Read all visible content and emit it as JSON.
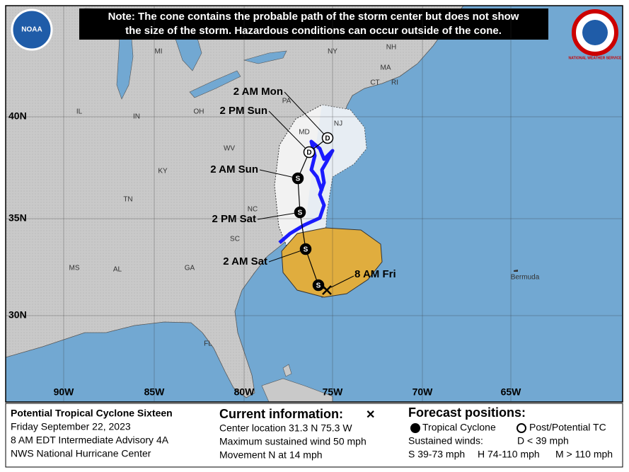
{
  "note": [
    "Note: The cone contains the probable path of the storm center but does not show",
    "the size of the storm. Hazardous conditions can occur outside of the cone."
  ],
  "logos": {
    "left": "NOAA",
    "right": "NATIONAL WEATHER SERVICE"
  },
  "map": {
    "latitude_labels": [
      "40N",
      "35N",
      "30N"
    ],
    "longitude_labels": [
      "90W",
      "85W",
      "80W",
      "75W",
      "70W",
      "65W"
    ],
    "places": [
      "MI",
      "NY",
      "NH",
      "MA",
      "CT",
      "RI",
      "IL",
      "IN",
      "OH",
      "PA",
      "NJ",
      "MD",
      "WV",
      "KY",
      "TN",
      "NC",
      "SC",
      "GA",
      "AL",
      "MS",
      "FL",
      "Bermuda"
    ],
    "current_position": {
      "label": "8 AM Fri"
    },
    "forecast_points": [
      {
        "symbol": "S"
      },
      {
        "label": "2 AM Sat",
        "symbol": "S"
      },
      {
        "label": "2 PM Sat",
        "symbol": "S"
      },
      {
        "label": "2 AM Sun",
        "symbol": "S"
      },
      {
        "label": "2 PM Sun",
        "symbol": "D"
      },
      {
        "label": "2 AM Mon",
        "symbol": "D"
      }
    ]
  },
  "footer": {
    "storm": [
      "Potential Tropical Cyclone Sixteen",
      "Friday September 22, 2023",
      "8 AM EDT Intermediate Advisory 4A",
      "NWS National Hurricane Center"
    ],
    "current": {
      "title": "Current information:",
      "symbol": "✕",
      "lines": [
        "Center location 31.3 N 75.3 W",
        "Maximum sustained wind 50 mph",
        "Movement N at 14 mph"
      ]
    },
    "forecast": {
      "title": "Forecast positions:",
      "tropical": "Tropical Cyclone",
      "post": "Post/Potential TC",
      "winds_title": "Sustained winds:",
      "d": "D < 39 mph",
      "s": "S 39-73 mph",
      "h": "H 74-110 mph",
      "m": "M > 110 mph"
    }
  }
}
